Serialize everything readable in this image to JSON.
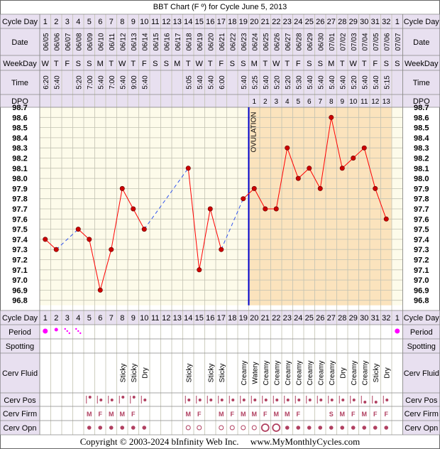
{
  "title": "BBT Chart (F º) for Cycle June 5, 2013",
  "footer": "Copyright © 2003-2024 bInfinity Web Inc.     www.MyMonthlyCycles.com",
  "row_labels": {
    "cycle_day": "Cycle Day",
    "date": "Date",
    "weekday": "WeekDay",
    "time": "Time",
    "dpo": "DPO",
    "period": "Period",
    "spotting": "Spotting",
    "cerv_fluid": "Cerv Fluid",
    "cerv_pos": "Cerv Pos",
    "cerv_firm": "Cerv Firm",
    "cerv_opn": "Cerv Opn"
  },
  "ovulation_label": "OVULATION",
  "colors": {
    "header_bg": "#e8e0f0",
    "chart_bg": "#fdfbea",
    "post_ov_bg": "#fbe3bd",
    "grid": "#c2c2b2",
    "line": "#ff0000",
    "dot": "#cc0000",
    "ovulation_line": "#0000cc",
    "period": "#ff00ff",
    "cerv": "#b04060"
  },
  "chart_data": {
    "type": "line",
    "title": "BBT Chart (F º) for Cycle June 5, 2013",
    "ylabel": "",
    "xlabel": "Cycle Day",
    "ylim": [
      96.8,
      98.7
    ],
    "yticks": [
      "98.7",
      "98.6",
      "98.5",
      "98.4",
      "98.3",
      "98.2",
      "98.1",
      "98.0",
      "97.9",
      "97.8",
      "97.7",
      "97.6",
      "97.5",
      "97.4",
      "97.3",
      "97.2",
      "97.1",
      "97.0",
      "96.9",
      "96.8"
    ],
    "cycle_days": [
      1,
      2,
      3,
      4,
      5,
      6,
      7,
      8,
      9,
      10,
      11,
      12,
      13,
      14,
      15,
      16,
      17,
      18,
      19,
      20,
      21,
      22,
      23,
      24,
      25,
      26,
      27,
      28,
      29,
      30,
      31,
      32,
      1
    ],
    "dates": [
      "06/05",
      "06/06",
      "06/07",
      "06/08",
      "06/09",
      "06/10",
      "06/11",
      "06/12",
      "06/13",
      "06/14",
      "06/15",
      "06/16",
      "06/17",
      "06/18",
      "06/19",
      "06/20",
      "06/21",
      "06/22",
      "06/23",
      "06/24",
      "06/25",
      "06/26",
      "06/27",
      "06/28",
      "06/29",
      "06/30",
      "07/01",
      "07/02",
      "07/03",
      "07/04",
      "07/05",
      "07/06",
      "07/07"
    ],
    "weekdays": [
      "W",
      "T",
      "F",
      "S",
      "S",
      "M",
      "T",
      "W",
      "T",
      "F",
      "S",
      "S",
      "M",
      "T",
      "W",
      "T",
      "F",
      "S",
      "S",
      "M",
      "T",
      "W",
      "T",
      "F",
      "S",
      "S",
      "M",
      "T",
      "W",
      "T",
      "F",
      "S",
      "S"
    ],
    "times": [
      "6:20",
      "5:40",
      "",
      "5:20",
      "7:00",
      "5:40",
      "7:00",
      "5:40",
      "9:00",
      "5:40",
      "",
      "",
      "",
      "5:05",
      "5:40",
      "5:40",
      "6:00",
      "",
      "5:40",
      "5:25",
      "5:40",
      "5:20",
      "5:20",
      "5:30",
      "5:40",
      "5:40",
      "5:40",
      "5:40",
      "5:20",
      "5:40",
      "5:40",
      "5:15",
      ""
    ],
    "dpo": [
      "",
      "",
      "",
      "",
      "",
      "",
      "",
      "",
      "",
      "",
      "",
      "",
      "",
      "",
      "",
      "",
      "",
      "",
      "",
      "1",
      "2",
      "3",
      "4",
      "5",
      "6",
      "7",
      "8",
      "9",
      "10",
      "11",
      "12",
      "13",
      ""
    ],
    "temps": [
      97.4,
      97.3,
      null,
      97.5,
      97.4,
      96.9,
      97.3,
      97.9,
      97.7,
      97.5,
      null,
      null,
      null,
      98.1,
      97.1,
      97.7,
      97.3,
      null,
      97.8,
      97.9,
      97.7,
      97.7,
      98.3,
      98.0,
      98.1,
      97.9,
      98.6,
      98.1,
      98.2,
      98.3,
      97.9,
      97.6,
      null
    ],
    "dashed_gaps": [
      [
        2,
        4
      ],
      [
        10,
        14
      ],
      [
        17,
        19
      ]
    ],
    "ovulation_day_index": 18,
    "period": [
      "big",
      "med",
      "light",
      "light",
      "",
      "",
      "",
      "",
      "",
      "",
      "",
      "",
      "",
      "",
      "",
      "",
      "",
      "",
      "",
      "",
      "",
      "",
      "",
      "",
      "",
      "",
      "",
      "",
      "",
      "",
      "",
      "",
      "big"
    ],
    "spotting": [],
    "cerv_fluid": [
      "",
      "",
      "",
      "",
      "",
      "",
      "",
      "Sticky",
      "Sticky",
      "Dry",
      "",
      "",
      "",
      "Sticky",
      "",
      "Sticky",
      "Sticky",
      "",
      "Creamy",
      "Watery",
      "Creamy",
      "Creamy",
      "Creamy",
      "Creamy",
      "Creamy",
      "Creamy",
      "Creamy",
      "Dry",
      "Creamy",
      "Creamy",
      "Sticky",
      "Dry",
      ""
    ],
    "cerv_pos": [
      "",
      "",
      "",
      "",
      "high",
      "med",
      "med",
      "high",
      "high",
      "med",
      "",
      "",
      "",
      "med",
      "med",
      "med",
      "med",
      "med",
      "med",
      "med",
      "med",
      "med",
      "med",
      "med",
      "med",
      "med",
      "med",
      "med",
      "med",
      "low",
      "low",
      "med",
      ""
    ],
    "cerv_firm": [
      "",
      "",
      "",
      "",
      "M",
      "F",
      "M",
      "M",
      "F",
      "",
      "",
      "",
      "",
      "M",
      "F",
      "",
      "M",
      "F",
      "M",
      "M",
      "F",
      "M",
      "M",
      "F",
      "",
      "",
      "S",
      "M",
      "F",
      "M",
      "F",
      "F",
      ""
    ],
    "cerv_opn": [
      "",
      "",
      "",
      "",
      "dot",
      "dot",
      "dot",
      "dot",
      "dot",
      "dot",
      "",
      "",
      "",
      "ring",
      "ring",
      "",
      "ring",
      "ring",
      "ring",
      "ring",
      "bigring",
      "bigring",
      "dot",
      "dot",
      "dot",
      "dot",
      "dot",
      "dot",
      "dot",
      "dot",
      "dot",
      "dot",
      ""
    ]
  }
}
